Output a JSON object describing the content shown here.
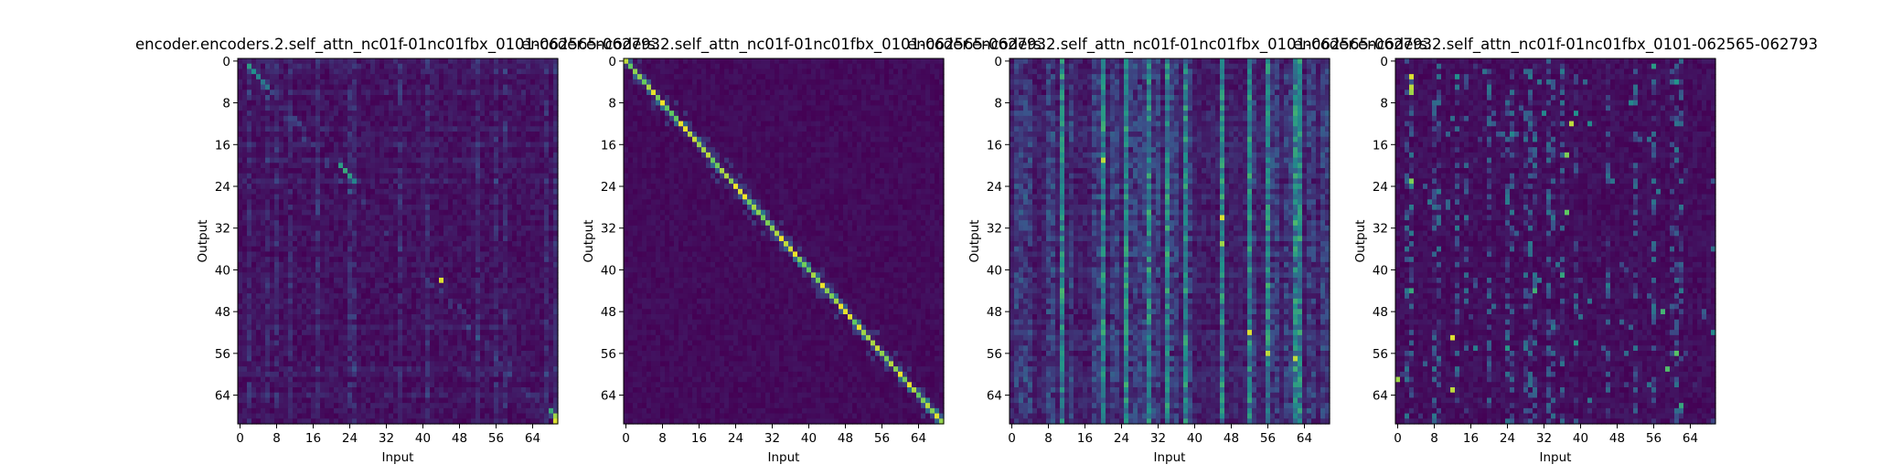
{
  "colors": {
    "background": "#440154",
    "low": "#440154",
    "mid": "#21918c",
    "high": "#fde725"
  },
  "chart_data": [
    {
      "type": "heatmap",
      "title": "encoder.encoders.2.self_attn_nc01f-01nc01fbx_0101-062565-062793",
      "xlabel": "Input",
      "ylabel": "Output",
      "size": [
        70,
        70
      ],
      "xticks": [
        "0",
        "8",
        "16",
        "24",
        "32",
        "40",
        "48",
        "56",
        "64"
      ],
      "yticks": [
        "0",
        "8",
        "16",
        "24",
        "32",
        "40",
        "48",
        "56",
        "64"
      ],
      "colormap": "viridis",
      "pattern": "faint-with-partial-diagonal",
      "highlights": [
        {
          "row": 1,
          "col": 2,
          "v": 0.55
        },
        {
          "row": 2,
          "col": 3,
          "v": 0.5
        },
        {
          "row": 3,
          "col": 4,
          "v": 0.45
        },
        {
          "row": 4,
          "col": 5,
          "v": 0.4
        },
        {
          "row": 5,
          "col": 6,
          "v": 0.4
        },
        {
          "row": 20,
          "col": 22,
          "v": 0.55
        },
        {
          "row": 21,
          "col": 23,
          "v": 0.6
        },
        {
          "row": 22,
          "col": 24,
          "v": 0.55
        },
        {
          "row": 23,
          "col": 25,
          "v": 0.45
        },
        {
          "row": 42,
          "col": 44,
          "v": 0.95
        },
        {
          "row": 67,
          "col": 68,
          "v": 0.6
        },
        {
          "row": 68,
          "col": 69,
          "v": 0.85
        },
        {
          "row": 69,
          "col": 69,
          "v": 0.95
        }
      ]
    },
    {
      "type": "heatmap",
      "title": "encoder.encoders.2.self_attn_nc01f-01nc01fbx_0101-062565-062793",
      "xlabel": "Input",
      "ylabel": "Output",
      "size": [
        70,
        70
      ],
      "xticks": [
        "0",
        "8",
        "16",
        "24",
        "32",
        "40",
        "48",
        "56",
        "64"
      ],
      "yticks": [
        "0",
        "8",
        "16",
        "24",
        "32",
        "40",
        "48",
        "56",
        "64"
      ],
      "colormap": "viridis",
      "pattern": "strong-diagonal",
      "highlights": []
    },
    {
      "type": "heatmap",
      "title": "encoder.encoders.2.self_attn_nc01f-01nc01fbx_0101-062565-062793",
      "xlabel": "Input",
      "ylabel": "Output",
      "size": [
        70,
        70
      ],
      "xticks": [
        "0",
        "8",
        "16",
        "24",
        "32",
        "40",
        "48",
        "56",
        "64"
      ],
      "yticks": [
        "0",
        "8",
        "16",
        "24",
        "32",
        "40",
        "48",
        "56",
        "64"
      ],
      "colormap": "viridis",
      "pattern": "vertical-stripes",
      "stripe_columns": [
        11,
        20,
        25,
        30,
        34,
        38,
        46,
        52,
        56,
        62,
        63
      ],
      "highlights": [
        {
          "row": 19,
          "col": 20,
          "v": 0.9
        },
        {
          "row": 30,
          "col": 46,
          "v": 0.95
        },
        {
          "row": 35,
          "col": 46,
          "v": 0.85
        },
        {
          "row": 52,
          "col": 52,
          "v": 0.95
        },
        {
          "row": 56,
          "col": 56,
          "v": 0.9
        },
        {
          "row": 57,
          "col": 62,
          "v": 0.9
        }
      ]
    },
    {
      "type": "heatmap",
      "title": "encoder.encoders.2.self_attn_nc01f-01nc01fbx_0101-062565-062793",
      "xlabel": "Input",
      "ylabel": "Output",
      "size": [
        70,
        70
      ],
      "xticks": [
        "0",
        "8",
        "16",
        "24",
        "32",
        "40",
        "48",
        "56",
        "64"
      ],
      "yticks": [
        "0",
        "8",
        "16",
        "24",
        "32",
        "40",
        "48",
        "56",
        "64"
      ],
      "colormap": "viridis",
      "pattern": "sparse-scatter",
      "highlights": [
        {
          "row": 3,
          "col": 3,
          "v": 0.95
        },
        {
          "row": 5,
          "col": 3,
          "v": 0.9
        },
        {
          "row": 6,
          "col": 3,
          "v": 0.85
        },
        {
          "row": 23,
          "col": 3,
          "v": 0.8
        },
        {
          "row": 44,
          "col": 3,
          "v": 0.6
        },
        {
          "row": 53,
          "col": 12,
          "v": 0.95
        },
        {
          "row": 63,
          "col": 12,
          "v": 0.9
        },
        {
          "row": 12,
          "col": 38,
          "v": 0.9
        },
        {
          "row": 18,
          "col": 37,
          "v": 0.8
        },
        {
          "row": 29,
          "col": 37,
          "v": 0.75
        },
        {
          "row": 48,
          "col": 58,
          "v": 0.65
        },
        {
          "row": 59,
          "col": 59,
          "v": 0.7
        },
        {
          "row": 61,
          "col": 0,
          "v": 0.85
        }
      ]
    }
  ]
}
